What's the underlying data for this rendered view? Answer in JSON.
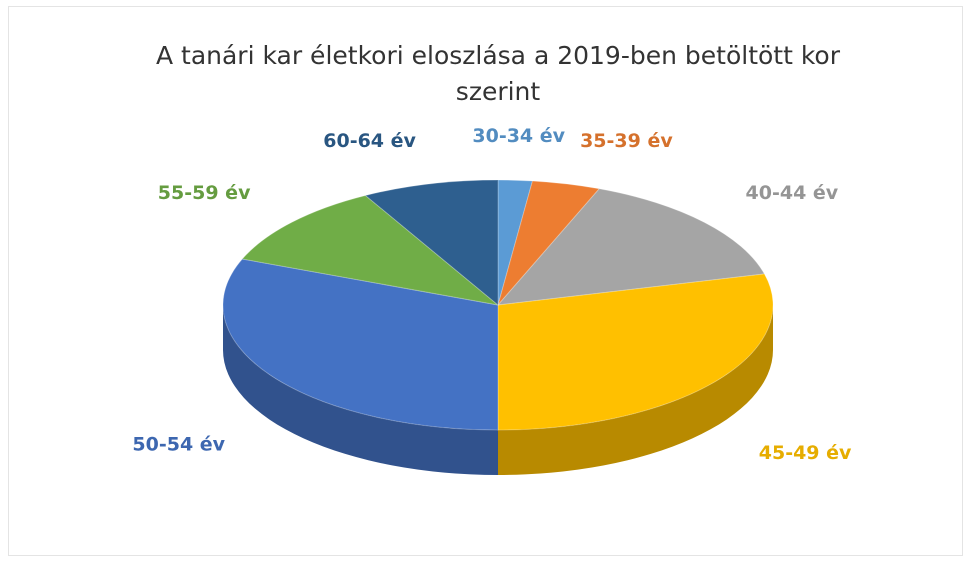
{
  "chart_data": {
    "type": "pie3d",
    "title": "A tanári kar életkori eloszlása a 2019-ben betöltött kor szerint",
    "categories": [
      "30-34 év",
      "35-39 év",
      "40-44 év",
      "45-49 év",
      "50-54 év",
      "55-59 év",
      "60-64 év"
    ],
    "values": [
      2,
      4,
      15,
      29,
      31,
      11,
      8
    ],
    "colors": [
      "#5b9bd5",
      "#ed7d31",
      "#a5a5a5",
      "#ffc000",
      "#4472c4",
      "#70ad47",
      "#2e5f8f"
    ]
  }
}
